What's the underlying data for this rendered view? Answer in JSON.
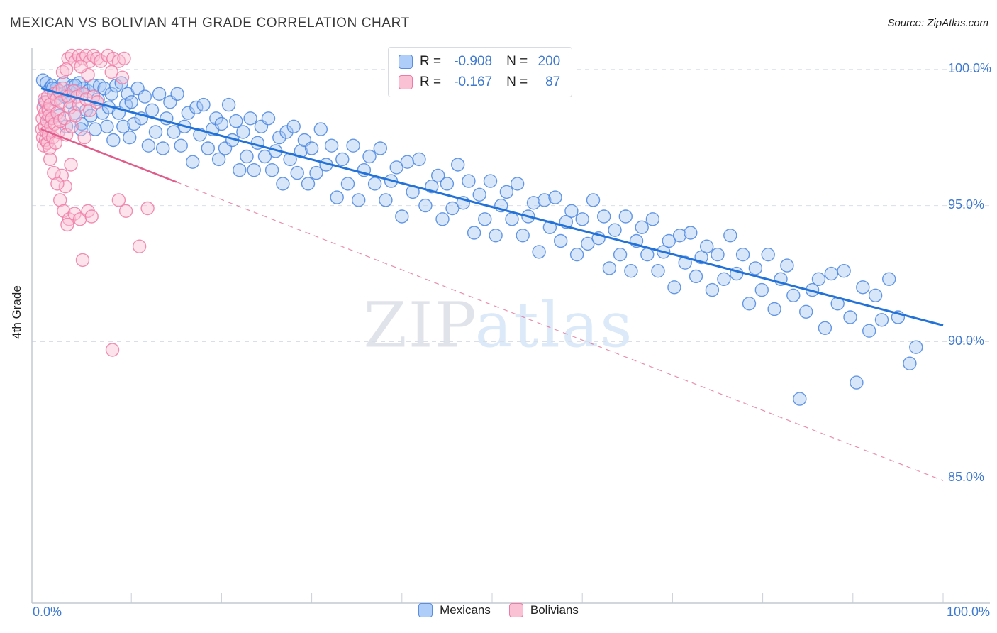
{
  "header": {
    "title": "MEXICAN VS BOLIVIAN 4TH GRADE CORRELATION CHART",
    "source": "Source: ZipAtlas.com"
  },
  "watermark": {
    "zip": "ZIP",
    "atlas": "atlas"
  },
  "axes": {
    "y_title": "4th Grade",
    "y_ticks": [
      "100.0%",
      "95.0%",
      "90.0%",
      "85.0%"
    ],
    "x_min_label": "0.0%",
    "x_max_label": "100.0%"
  },
  "legend_box": {
    "rows": [
      {
        "series": "Mexicans",
        "r_label": "R =",
        "r_value": "-0.908",
        "n_label": "N =",
        "n_value": "200"
      },
      {
        "series": "Bolivians",
        "r_label": "R =",
        "r_value": "-0.167",
        "n_label": "N =",
        "n_value": "87"
      }
    ]
  },
  "bottom_legend": [
    {
      "label": "Mexicans"
    },
    {
      "label": "Bolivians"
    }
  ],
  "colors": {
    "accent_blue_text": "#3f7ad0",
    "mexicans_fill": "#a8c8f5",
    "mexicans_edge": "#4a86e0",
    "mexicans_trend": "#2272d8",
    "bolivians_fill": "#fac0d4",
    "bolivians_edge": "#ee7ba5",
    "bolivians_trend": "#e05c8a",
    "gridline": "#d9dee8"
  },
  "chart_data": {
    "type": "scatter",
    "title": "MEXICAN VS BOLIVIAN 4TH GRADE CORRELATION CHART",
    "xlabel": "",
    "ylabel": "4th Grade",
    "xlim": [
      0,
      100
    ],
    "ylim": [
      80.4,
      100.8
    ],
    "x_tick_labels": [
      "0.0%",
      "100.0%"
    ],
    "y_gridlines": [
      100,
      95,
      90,
      85
    ],
    "grid": true,
    "legend_position": "top-center",
    "series": [
      {
        "name": "Mexicans",
        "R": -0.908,
        "N": 200,
        "fill": "#a8c8f5",
        "edge": "#4a86e0",
        "trend_color": "#2272d8",
        "trend": {
          "x0": 0,
          "y0": 99.3,
          "x1": 100,
          "y1": 90.6
        },
        "points": [
          [
            0.2,
            99.6
          ],
          [
            0.4,
            98.8
          ],
          [
            0.6,
            99.5
          ],
          [
            0.8,
            98.2
          ],
          [
            1.0,
            99.3
          ],
          [
            1.2,
            99.4
          ],
          [
            1.5,
            98.9
          ],
          [
            1.7,
            99.3
          ],
          [
            2.0,
            98.3
          ],
          [
            2.2,
            99.1
          ],
          [
            2.5,
            99.5
          ],
          [
            2.8,
            97.9
          ],
          [
            3.0,
            99.2
          ],
          [
            3.2,
            98.8
          ],
          [
            3.5,
            99.4
          ],
          [
            3.7,
            98.4
          ],
          [
            4.0,
            99.2
          ],
          [
            4.2,
            99.5
          ],
          [
            4.5,
            98.0
          ],
          [
            4.7,
            99.3
          ],
          [
            5.0,
            98.5
          ],
          [
            1.3,
            99.3
          ],
          [
            2.6,
            99.0
          ],
          [
            3.8,
            99.4
          ],
          [
            4.4,
            97.8
          ],
          [
            5.2,
            99.2
          ],
          [
            5.5,
            98.3
          ],
          [
            5.8,
            99.4
          ],
          [
            6.0,
            97.8
          ],
          [
            6.3,
            98.9
          ],
          [
            6.5,
            99.4
          ],
          [
            6.8,
            98.4
          ],
          [
            7.0,
            99.3
          ],
          [
            7.3,
            97.9
          ],
          [
            7.5,
            98.6
          ],
          [
            7.8,
            99.1
          ],
          [
            8.0,
            97.4
          ],
          [
            8.3,
            99.4
          ],
          [
            8.6,
            98.4
          ],
          [
            8.9,
            99.5
          ],
          [
            9.1,
            97.9
          ],
          [
            9.4,
            98.7
          ],
          [
            9.6,
            99.1
          ],
          [
            9.8,
            97.5
          ],
          [
            10.0,
            98.8
          ],
          [
            10.3,
            98.0
          ],
          [
            10.7,
            99.3
          ],
          [
            11.1,
            98.2
          ],
          [
            11.5,
            99.0
          ],
          [
            11.9,
            97.2
          ],
          [
            12.3,
            98.5
          ],
          [
            12.7,
            97.7
          ],
          [
            13.1,
            99.1
          ],
          [
            13.5,
            97.1
          ],
          [
            13.9,
            98.2
          ],
          [
            14.3,
            98.8
          ],
          [
            14.7,
            97.7
          ],
          [
            15.1,
            99.1
          ],
          [
            15.5,
            97.2
          ],
          [
            15.9,
            97.9
          ],
          [
            16.3,
            98.4
          ],
          [
            16.8,
            96.6
          ],
          [
            17.2,
            98.6
          ],
          [
            17.6,
            97.6
          ],
          [
            18.0,
            98.7
          ],
          [
            18.5,
            97.1
          ],
          [
            19.0,
            97.8
          ],
          [
            19.4,
            98.2
          ],
          [
            19.7,
            96.7
          ],
          [
            20.0,
            98.0
          ],
          [
            20.4,
            97.1
          ],
          [
            20.8,
            98.7
          ],
          [
            21.2,
            97.4
          ],
          [
            21.6,
            98.1
          ],
          [
            22.0,
            96.3
          ],
          [
            22.4,
            97.7
          ],
          [
            22.8,
            96.8
          ],
          [
            23.2,
            98.2
          ],
          [
            23.6,
            96.3
          ],
          [
            24.0,
            97.3
          ],
          [
            24.4,
            97.9
          ],
          [
            24.8,
            96.8
          ],
          [
            25.2,
            98.2
          ],
          [
            25.6,
            96.3
          ],
          [
            26.0,
            97.0
          ],
          [
            26.4,
            97.5
          ],
          [
            26.8,
            95.8
          ],
          [
            27.2,
            97.7
          ],
          [
            27.6,
            96.7
          ],
          [
            28.0,
            97.9
          ],
          [
            28.4,
            96.2
          ],
          [
            28.8,
            97.0
          ],
          [
            29.2,
            97.4
          ],
          [
            29.6,
            95.8
          ],
          [
            30.0,
            97.1
          ],
          [
            30.5,
            96.2
          ],
          [
            31.0,
            97.8
          ],
          [
            31.6,
            96.5
          ],
          [
            32.2,
            97.2
          ],
          [
            32.8,
            95.3
          ],
          [
            33.4,
            96.7
          ],
          [
            34.0,
            95.8
          ],
          [
            34.6,
            97.2
          ],
          [
            35.2,
            95.2
          ],
          [
            35.8,
            96.3
          ],
          [
            36.4,
            96.8
          ],
          [
            37.0,
            95.8
          ],
          [
            37.6,
            97.1
          ],
          [
            38.2,
            95.2
          ],
          [
            38.8,
            95.9
          ],
          [
            39.4,
            96.4
          ],
          [
            40.0,
            94.6
          ],
          [
            40.6,
            96.6
          ],
          [
            41.2,
            95.5
          ],
          [
            41.9,
            96.7
          ],
          [
            42.6,
            95.0
          ],
          [
            43.3,
            95.7
          ],
          [
            44.0,
            96.1
          ],
          [
            44.5,
            94.5
          ],
          [
            45.0,
            95.8
          ],
          [
            45.6,
            94.9
          ],
          [
            46.2,
            96.5
          ],
          [
            46.8,
            95.1
          ],
          [
            47.4,
            95.9
          ],
          [
            48.0,
            94.0
          ],
          [
            48.6,
            95.4
          ],
          [
            49.2,
            94.5
          ],
          [
            49.8,
            95.9
          ],
          [
            50.4,
            93.9
          ],
          [
            51.0,
            95.0
          ],
          [
            51.6,
            95.5
          ],
          [
            52.2,
            94.5
          ],
          [
            52.8,
            95.8
          ],
          [
            53.4,
            93.9
          ],
          [
            54.0,
            94.6
          ],
          [
            54.6,
            95.1
          ],
          [
            55.2,
            93.3
          ],
          [
            55.8,
            95.2
          ],
          [
            56.4,
            94.2
          ],
          [
            57.0,
            95.3
          ],
          [
            57.6,
            93.7
          ],
          [
            58.2,
            94.4
          ],
          [
            58.8,
            94.8
          ],
          [
            59.4,
            93.2
          ],
          [
            60.0,
            94.5
          ],
          [
            60.6,
            93.6
          ],
          [
            61.2,
            95.2
          ],
          [
            61.8,
            93.8
          ],
          [
            62.4,
            94.6
          ],
          [
            63.0,
            92.7
          ],
          [
            63.6,
            94.1
          ],
          [
            64.2,
            93.2
          ],
          [
            64.8,
            94.6
          ],
          [
            65.4,
            92.6
          ],
          [
            66.0,
            93.7
          ],
          [
            66.6,
            94.2
          ],
          [
            67.2,
            93.2
          ],
          [
            67.8,
            94.5
          ],
          [
            68.4,
            92.6
          ],
          [
            69.0,
            93.3
          ],
          [
            69.6,
            93.7
          ],
          [
            70.2,
            92.0
          ],
          [
            70.8,
            93.9
          ],
          [
            71.4,
            92.9
          ],
          [
            72.0,
            94.0
          ],
          [
            72.6,
            92.4
          ],
          [
            73.2,
            93.1
          ],
          [
            73.8,
            93.5
          ],
          [
            74.4,
            91.9
          ],
          [
            75.0,
            93.2
          ],
          [
            75.7,
            92.3
          ],
          [
            76.4,
            93.9
          ],
          [
            77.1,
            92.5
          ],
          [
            77.8,
            93.2
          ],
          [
            78.5,
            91.4
          ],
          [
            79.2,
            92.7
          ],
          [
            79.9,
            91.9
          ],
          [
            80.6,
            93.2
          ],
          [
            81.3,
            91.2
          ],
          [
            82.0,
            92.3
          ],
          [
            82.7,
            92.8
          ],
          [
            83.4,
            91.7
          ],
          [
            84.1,
            87.9
          ],
          [
            84.8,
            91.1
          ],
          [
            85.5,
            91.9
          ],
          [
            86.2,
            92.3
          ],
          [
            86.9,
            90.5
          ],
          [
            87.6,
            92.5
          ],
          [
            88.3,
            91.4
          ],
          [
            89.0,
            92.6
          ],
          [
            89.7,
            90.9
          ],
          [
            90.4,
            88.5
          ],
          [
            91.1,
            92.0
          ],
          [
            91.8,
            90.4
          ],
          [
            92.5,
            91.7
          ],
          [
            93.2,
            90.8
          ],
          [
            94.0,
            92.3
          ],
          [
            95.0,
            90.9
          ],
          [
            96.3,
            89.2
          ],
          [
            97.0,
            89.8
          ]
        ]
      },
      {
        "name": "Bolivians",
        "R": -0.167,
        "N": 87,
        "fill": "#fac0d4",
        "edge": "#ee7ba5",
        "trend_color": "#e05c8a",
        "trend": {
          "x0": 0,
          "y0": 97.8,
          "x1": 100,
          "y1": 84.9,
          "solid_until": 15
        },
        "points": [
          [
            3.0,
            100.4
          ],
          [
            3.4,
            100.5
          ],
          [
            3.8,
            100.3
          ],
          [
            4.2,
            100.5
          ],
          [
            4.6,
            100.4
          ],
          [
            5.0,
            100.5
          ],
          [
            5.4,
            100.3
          ],
          [
            5.8,
            100.5
          ],
          [
            6.2,
            100.4
          ],
          [
            6.6,
            100.3
          ],
          [
            7.4,
            100.5
          ],
          [
            8.0,
            100.4
          ],
          [
            8.6,
            100.3
          ],
          [
            9.2,
            100.4
          ],
          [
            2.4,
            99.9
          ],
          [
            2.8,
            100.0
          ],
          [
            5.2,
            99.8
          ],
          [
            7.8,
            99.9
          ],
          [
            9.0,
            99.7
          ],
          [
            4.4,
            100.1
          ],
          [
            0.1,
            97.8
          ],
          [
            0.15,
            98.2
          ],
          [
            0.2,
            97.5
          ],
          [
            0.25,
            98.6
          ],
          [
            0.3,
            97.2
          ],
          [
            0.35,
            98.9
          ],
          [
            0.4,
            97.9
          ],
          [
            0.45,
            98.4
          ],
          [
            0.5,
            97.4
          ],
          [
            0.55,
            98.8
          ],
          [
            0.6,
            97.7
          ],
          [
            0.65,
            98.1
          ],
          [
            0.7,
            97.3
          ],
          [
            0.75,
            99.0
          ],
          [
            0.8,
            98.5
          ],
          [
            0.85,
            97.6
          ],
          [
            0.9,
            98.3
          ],
          [
            0.95,
            97.1
          ],
          [
            1.0,
            98.7
          ],
          [
            1.1,
            97.9
          ],
          [
            1.2,
            98.2
          ],
          [
            1.3,
            97.5
          ],
          [
            1.4,
            99.1
          ],
          [
            1.5,
            98.0
          ],
          [
            1.6,
            97.3
          ],
          [
            1.7,
            98.9
          ],
          [
            1.8,
            98.4
          ],
          [
            1.9,
            97.7
          ],
          [
            2.0,
            99.2
          ],
          [
            2.1,
            98.1
          ],
          [
            2.2,
            98.8
          ],
          [
            2.4,
            99.3
          ],
          [
            2.6,
            98.2
          ],
          [
            2.8,
            97.6
          ],
          [
            3.0,
            99.0
          ],
          [
            3.2,
            98.6
          ],
          [
            3.4,
            97.9
          ],
          [
            3.6,
            99.2
          ],
          [
            3.8,
            98.3
          ],
          [
            4.0,
            99.0
          ],
          [
            4.2,
            98.7
          ],
          [
            4.6,
            99.1
          ],
          [
            5.0,
            98.9
          ],
          [
            5.4,
            98.5
          ],
          [
            5.8,
            99.0
          ],
          [
            6.2,
            98.8
          ],
          [
            4.8,
            97.5
          ],
          [
            3.3,
            96.5
          ],
          [
            2.3,
            96.1
          ],
          [
            2.7,
            95.7
          ],
          [
            1.0,
            96.7
          ],
          [
            1.4,
            96.2
          ],
          [
            1.8,
            95.8
          ],
          [
            2.1,
            95.2
          ],
          [
            2.5,
            94.8
          ],
          [
            3.1,
            94.5
          ],
          [
            2.9,
            94.3
          ],
          [
            3.7,
            94.7
          ],
          [
            4.3,
            94.5
          ],
          [
            5.2,
            94.8
          ],
          [
            5.6,
            94.6
          ],
          [
            4.6,
            93.0
          ],
          [
            7.9,
            89.7
          ],
          [
            10.9,
            93.5
          ],
          [
            8.6,
            95.2
          ],
          [
            9.4,
            94.8
          ],
          [
            11.8,
            94.9
          ]
        ]
      }
    ]
  }
}
